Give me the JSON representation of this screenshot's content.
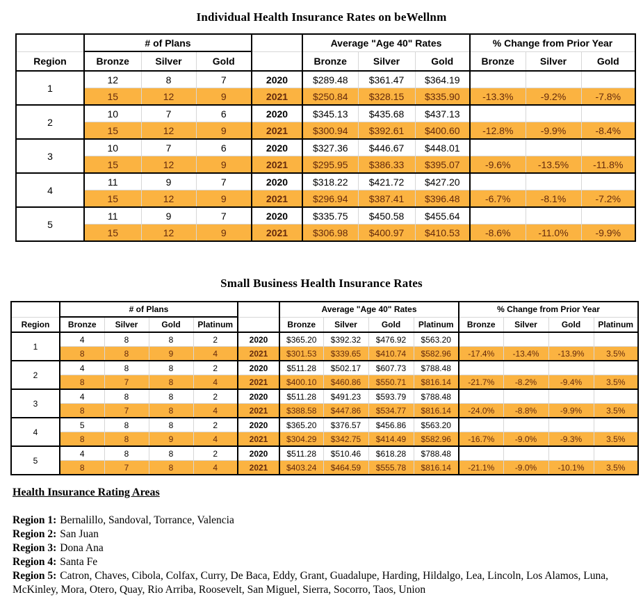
{
  "colors": {
    "highlight_fill": "#FBB341",
    "highlight_text": "#652A0C",
    "grid_line": "#D6D6D6",
    "border": "#000000"
  },
  "table1": {
    "title": "Individual Health Insurance Rates on beWellnm",
    "header": {
      "region": "Region",
      "groups": [
        "# of Plans",
        "Average \"Age 40\" Rates",
        "% Change from Prior Year"
      ],
      "columns": [
        "Bronze",
        "Silver",
        "Gold"
      ]
    },
    "rows": [
      {
        "region": "1",
        "years": [
          {
            "year": "2020",
            "plans": [
              "12",
              "8",
              "7"
            ],
            "rates": [
              "$289.48",
              "$361.47",
              "$364.19"
            ],
            "changes": [
              "",
              "",
              ""
            ]
          },
          {
            "year": "2021",
            "plans": [
              "15",
              "12",
              "9"
            ],
            "rates": [
              "$250.84",
              "$328.15",
              "$335.90"
            ],
            "changes": [
              "-13.3%",
              "-9.2%",
              "-7.8%"
            ]
          }
        ]
      },
      {
        "region": "2",
        "years": [
          {
            "year": "2020",
            "plans": [
              "10",
              "7",
              "6"
            ],
            "rates": [
              "$345.13",
              "$435.68",
              "$437.13"
            ],
            "changes": [
              "",
              "",
              ""
            ]
          },
          {
            "year": "2021",
            "plans": [
              "15",
              "12",
              "9"
            ],
            "rates": [
              "$300.94",
              "$392.61",
              "$400.60"
            ],
            "changes": [
              "-12.8%",
              "-9.9%",
              "-8.4%"
            ]
          }
        ]
      },
      {
        "region": "3",
        "years": [
          {
            "year": "2020",
            "plans": [
              "10",
              "7",
              "6"
            ],
            "rates": [
              "$327.36",
              "$446.67",
              "$448.01"
            ],
            "changes": [
              "",
              "",
              ""
            ]
          },
          {
            "year": "2021",
            "plans": [
              "15",
              "12",
              "9"
            ],
            "rates": [
              "$295.95",
              "$386.33",
              "$395.07"
            ],
            "changes": [
              "-9.6%",
              "-13.5%",
              "-11.8%"
            ]
          }
        ]
      },
      {
        "region": "4",
        "years": [
          {
            "year": "2020",
            "plans": [
              "11",
              "9",
              "7"
            ],
            "rates": [
              "$318.22",
              "$421.72",
              "$427.20"
            ],
            "changes": [
              "",
              "",
              ""
            ]
          },
          {
            "year": "2021",
            "plans": [
              "15",
              "12",
              "9"
            ],
            "rates": [
              "$296.94",
              "$387.41",
              "$396.48"
            ],
            "changes": [
              "-6.7%",
              "-8.1%",
              "-7.2%"
            ]
          }
        ]
      },
      {
        "region": "5",
        "years": [
          {
            "year": "2020",
            "plans": [
              "11",
              "9",
              "7"
            ],
            "rates": [
              "$335.75",
              "$450.58",
              "$455.64"
            ],
            "changes": [
              "",
              "",
              ""
            ]
          },
          {
            "year": "2021",
            "plans": [
              "15",
              "12",
              "9"
            ],
            "rates": [
              "$306.98",
              "$400.97",
              "$410.53"
            ],
            "changes": [
              "-8.6%",
              "-11.0%",
              "-9.9%"
            ]
          }
        ]
      }
    ]
  },
  "table2": {
    "title": "Small Business Health Insurance Rates",
    "header": {
      "region": "Region",
      "groups": [
        "# of Plans",
        "Average \"Age 40\" Rates",
        "% Change from Prior Year"
      ],
      "columns": [
        "Bronze",
        "Silver",
        "Gold",
        "Platinum"
      ]
    },
    "rows": [
      {
        "region": "1",
        "years": [
          {
            "year": "2020",
            "plans": [
              "4",
              "8",
              "8",
              "2"
            ],
            "rates": [
              "$365.20",
              "$392.32",
              "$476.92",
              "$563.20"
            ],
            "changes": [
              "",
              "",
              "",
              ""
            ]
          },
          {
            "year": "2021",
            "plans": [
              "8",
              "8",
              "9",
              "4"
            ],
            "rates": [
              "$301.53",
              "$339.65",
              "$410.74",
              "$582.96"
            ],
            "changes": [
              "-17.4%",
              "-13.4%",
              "-13.9%",
              "3.5%"
            ]
          }
        ]
      },
      {
        "region": "2",
        "years": [
          {
            "year": "2020",
            "plans": [
              "4",
              "8",
              "8",
              "2"
            ],
            "rates": [
              "$511.28",
              "$502.17",
              "$607.73",
              "$788.48"
            ],
            "changes": [
              "",
              "",
              "",
              ""
            ]
          },
          {
            "year": "2021",
            "plans": [
              "8",
              "7",
              "8",
              "4"
            ],
            "rates": [
              "$400.10",
              "$460.86",
              "$550.71",
              "$816.14"
            ],
            "changes": [
              "-21.7%",
              "-8.2%",
              "-9.4%",
              "3.5%"
            ]
          }
        ]
      },
      {
        "region": "3",
        "years": [
          {
            "year": "2020",
            "plans": [
              "4",
              "8",
              "8",
              "2"
            ],
            "rates": [
              "$511.28",
              "$491.23",
              "$593.79",
              "$788.48"
            ],
            "changes": [
              "",
              "",
              "",
              ""
            ]
          },
          {
            "year": "2021",
            "plans": [
              "8",
              "7",
              "8",
              "4"
            ],
            "rates": [
              "$388.58",
              "$447.86",
              "$534.77",
              "$816.14"
            ],
            "changes": [
              "-24.0%",
              "-8.8%",
              "-9.9%",
              "3.5%"
            ]
          }
        ]
      },
      {
        "region": "4",
        "years": [
          {
            "year": "2020",
            "plans": [
              "5",
              "8",
              "8",
              "2"
            ],
            "rates": [
              "$365.20",
              "$376.57",
              "$456.86",
              "$563.20"
            ],
            "changes": [
              "",
              "",
              "",
              ""
            ]
          },
          {
            "year": "2021",
            "plans": [
              "8",
              "8",
              "9",
              "4"
            ],
            "rates": [
              "$304.29",
              "$342.75",
              "$414.49",
              "$582.96"
            ],
            "changes": [
              "-16.7%",
              "-9.0%",
              "-9.3%",
              "3.5%"
            ]
          }
        ]
      },
      {
        "region": "5",
        "years": [
          {
            "year": "2020",
            "plans": [
              "4",
              "8",
              "8",
              "2"
            ],
            "rates": [
              "$511.28",
              "$510.46",
              "$618.28",
              "$788.48"
            ],
            "changes": [
              "",
              "",
              "",
              ""
            ]
          },
          {
            "year": "2021",
            "plans": [
              "8",
              "7",
              "8",
              "4"
            ],
            "rates": [
              "$403.24",
              "$464.59",
              "$555.78",
              "$816.14"
            ],
            "changes": [
              "-21.1%",
              "-9.0%",
              "-10.1%",
              "3.5%"
            ]
          }
        ]
      }
    ]
  },
  "footer": {
    "heading": "Health Insurance Rating Areas",
    "regions": [
      {
        "label": "Region 1:",
        "areas": "Bernalillo, Sandoval, Torrance, Valencia"
      },
      {
        "label": "Region 2:",
        "areas": "San Juan"
      },
      {
        "label": "Region 3:",
        "areas": "Dona Ana"
      },
      {
        "label": "Region 4:",
        "areas": "Santa Fe"
      },
      {
        "label": "Region 5:",
        "areas": "Catron, Chaves, Cibola, Colfax, Curry, De Baca, Eddy, Grant, Guadalupe, Harding, Hildalgo, Lea, Lincoln, Los Alamos, Luna, McKinley, Mora, Otero, Quay, Rio Arriba, Roosevelt, San Miguel, Sierra, Socorro, Taos, Union"
      }
    ]
  }
}
